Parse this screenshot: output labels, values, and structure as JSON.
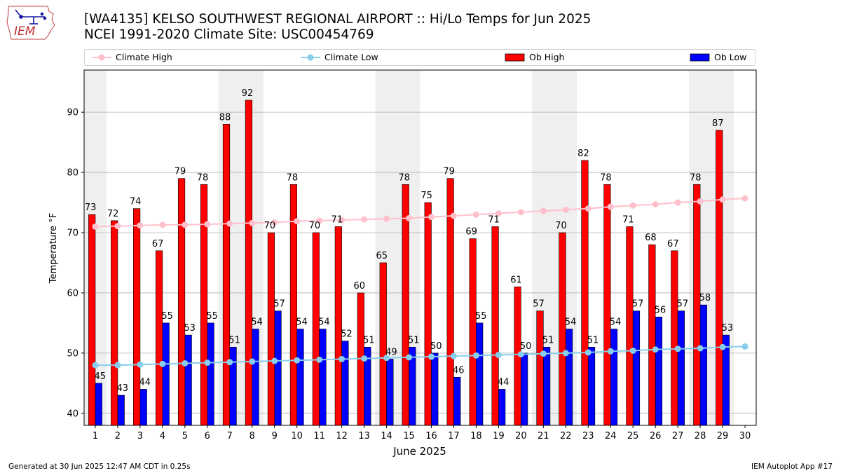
{
  "logo": {
    "text": "IEM",
    "icon": "iowa-state-outline-with-weather-station"
  },
  "title": {
    "line1": "[WA4135] KELSO SOUTHWEST REGIONAL AIRPORT :: Hi/Lo Temps for Jun 2025",
    "line2": "NCEI 1991-2020 Climate Site: USC00454769"
  },
  "legend": {
    "climate_high": "Climate High",
    "climate_low": "Climate Low",
    "ob_high": "Ob High",
    "ob_low": "Ob Low"
  },
  "colors": {
    "ob_high": "#ff0000",
    "ob_low": "#0000ff",
    "climate_high": "#ffc0cb",
    "climate_low": "#87ceeb",
    "weekend_shade": "#efefef",
    "grid": "#b0b0b0"
  },
  "footer": {
    "left": "Generated at 30 Jun 2025 12:47 AM CDT in 0.25s",
    "right": "IEM Autoplot App #17"
  },
  "chart_data": {
    "type": "bar",
    "xlabel": "June 2025",
    "ylabel": "Temperature °F",
    "ylim": [
      38,
      97
    ],
    "xlim": [
      0.5,
      30.5
    ],
    "yticks": [
      40,
      50,
      60,
      70,
      80,
      90
    ],
    "grid": true,
    "categories": [
      "1",
      "2",
      "3",
      "4",
      "5",
      "6",
      "7",
      "8",
      "9",
      "10",
      "11",
      "12",
      "13",
      "14",
      "15",
      "16",
      "17",
      "18",
      "19",
      "20",
      "21",
      "22",
      "23",
      "24",
      "25",
      "26",
      "27",
      "28",
      "29",
      "30"
    ],
    "shaded_weekend_days": [
      1,
      7,
      8,
      14,
      15,
      21,
      22,
      28,
      29
    ],
    "series": [
      {
        "name": "Ob High",
        "kind": "bar",
        "values": [
          73,
          72,
          74,
          67,
          79,
          78,
          88,
          92,
          70,
          78,
          70,
          71,
          60,
          65,
          78,
          75,
          79,
          69,
          71,
          61,
          57,
          70,
          82,
          78,
          71,
          68,
          67,
          78,
          87,
          null
        ]
      },
      {
        "name": "Ob Low",
        "kind": "bar",
        "values": [
          45,
          43,
          44,
          55,
          53,
          55,
          51,
          54,
          57,
          54,
          54,
          52,
          51,
          49,
          51,
          50,
          46,
          55,
          44,
          50,
          51,
          54,
          51,
          54,
          57,
          56,
          57,
          58,
          53,
          null
        ]
      },
      {
        "name": "Climate High",
        "kind": "line",
        "values": [
          71.0,
          71.1,
          71.2,
          71.3,
          71.3,
          71.4,
          71.5,
          71.6,
          71.7,
          71.9,
          72.0,
          72.1,
          72.2,
          72.3,
          72.4,
          72.6,
          72.8,
          73.0,
          73.2,
          73.4,
          73.6,
          73.8,
          74.0,
          74.3,
          74.5,
          74.7,
          75.0,
          75.2,
          75.5,
          75.7
        ]
      },
      {
        "name": "Climate Low",
        "kind": "line",
        "values": [
          48.0,
          48.0,
          48.1,
          48.2,
          48.3,
          48.4,
          48.5,
          48.6,
          48.7,
          48.8,
          48.9,
          49.0,
          49.1,
          49.2,
          49.3,
          49.4,
          49.5,
          49.6,
          49.7,
          49.8,
          49.9,
          50.0,
          50.1,
          50.3,
          50.4,
          50.6,
          50.7,
          50.8,
          51.0,
          51.1
        ]
      }
    ]
  }
}
